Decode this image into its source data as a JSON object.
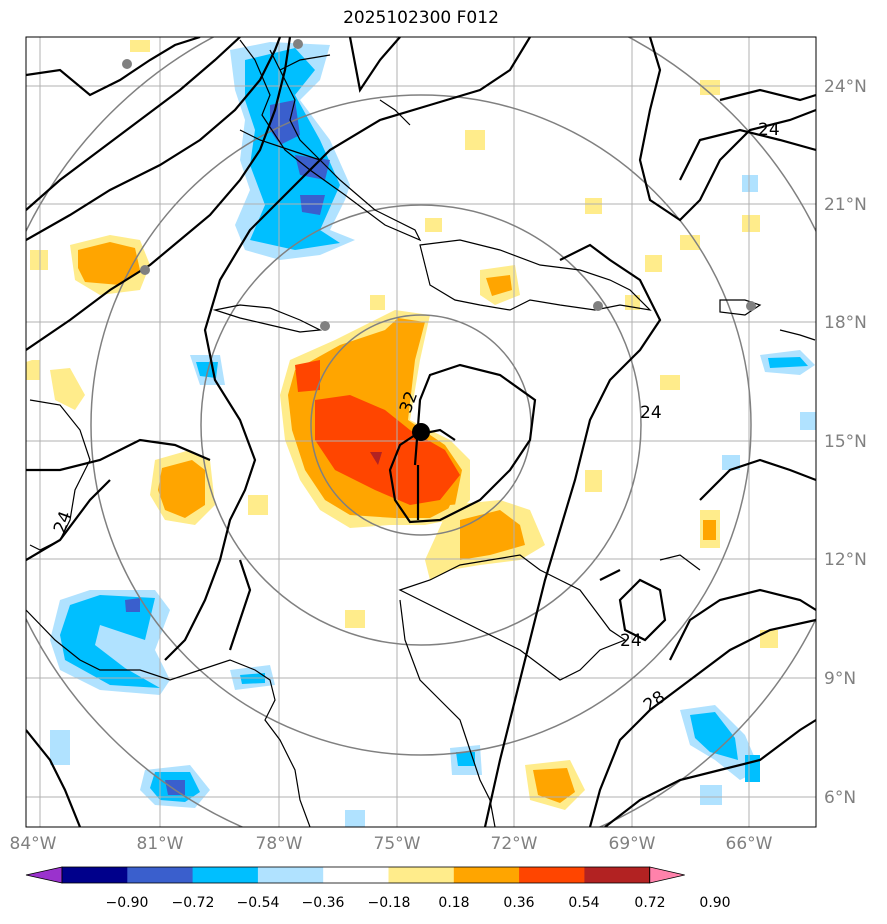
{
  "title": "2025102300 F012",
  "lon_ticks": [
    "84°W",
    "81°W",
    "78°W",
    "75°W",
    "72°W",
    "69°W",
    "66°W"
  ],
  "lat_ticks": [
    "24°N",
    "21°N",
    "18°N",
    "15°N",
    "12°N",
    "9°N",
    "6°N"
  ],
  "colorbar": {
    "ticks": [
      "−0.90",
      "−0.72",
      "−0.54",
      "−0.36",
      "−0.18",
      "0.18",
      "0.36",
      "0.54",
      "0.72",
      "0.90"
    ],
    "colors": [
      "#9a32cd",
      "#00008b",
      "#3a5fcd",
      "#00bfff",
      "#b0e2ff",
      "#ffffff",
      "#ffec8b",
      "#ffa500",
      "#ff4500",
      "#b22222",
      "#ff82ab"
    ]
  },
  "contour_labels": [
    "24",
    "24",
    "24",
    "28",
    "32",
    "24"
  ],
  "storm_center": {
    "lon": -73.7,
    "lat": 15.2
  },
  "range_rings": "concentric circles around storm center",
  "marker_colors": {
    "storm": "#000000",
    "stations": "#808080",
    "rings": "#808080",
    "grid": "#b0b0b0"
  }
}
